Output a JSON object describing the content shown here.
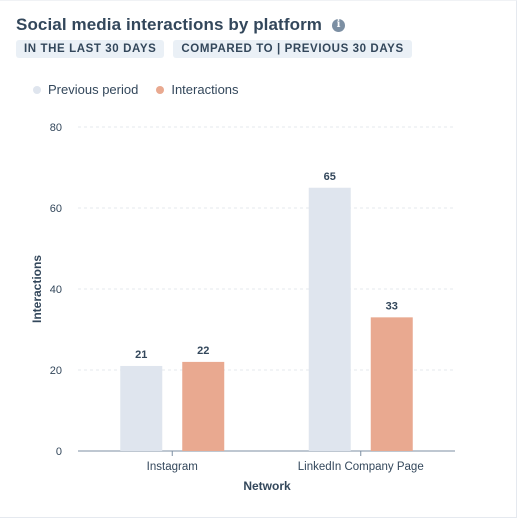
{
  "header": {
    "title": "Social media interactions by platform",
    "info_icon": "info-icon"
  },
  "filters": {
    "date_range": "IN THE LAST 30 DAYS",
    "comparison": "COMPARED TO | PREVIOUS 30 DAYS"
  },
  "colors": {
    "previous": "#dfe5ee",
    "current": "#e9a990",
    "title": "#33475b",
    "grid": "#e4e8ee",
    "axis": "#7c8fa3"
  },
  "chart_data": {
    "type": "bar",
    "title": "Social media interactions by platform",
    "xlabel": "Network",
    "ylabel": "Interactions",
    "ylim": [
      0,
      80
    ],
    "yticks": [
      0,
      20,
      40,
      60,
      80
    ],
    "categories": [
      "Instagram",
      "LinkedIn Company Page"
    ],
    "series": [
      {
        "name": "Previous period",
        "values": [
          21,
          65
        ],
        "color": "#dfe5ee"
      },
      {
        "name": "Interactions",
        "values": [
          22,
          33
        ],
        "color": "#e9a990"
      }
    ],
    "grid": true,
    "legend_position": "top-left"
  }
}
